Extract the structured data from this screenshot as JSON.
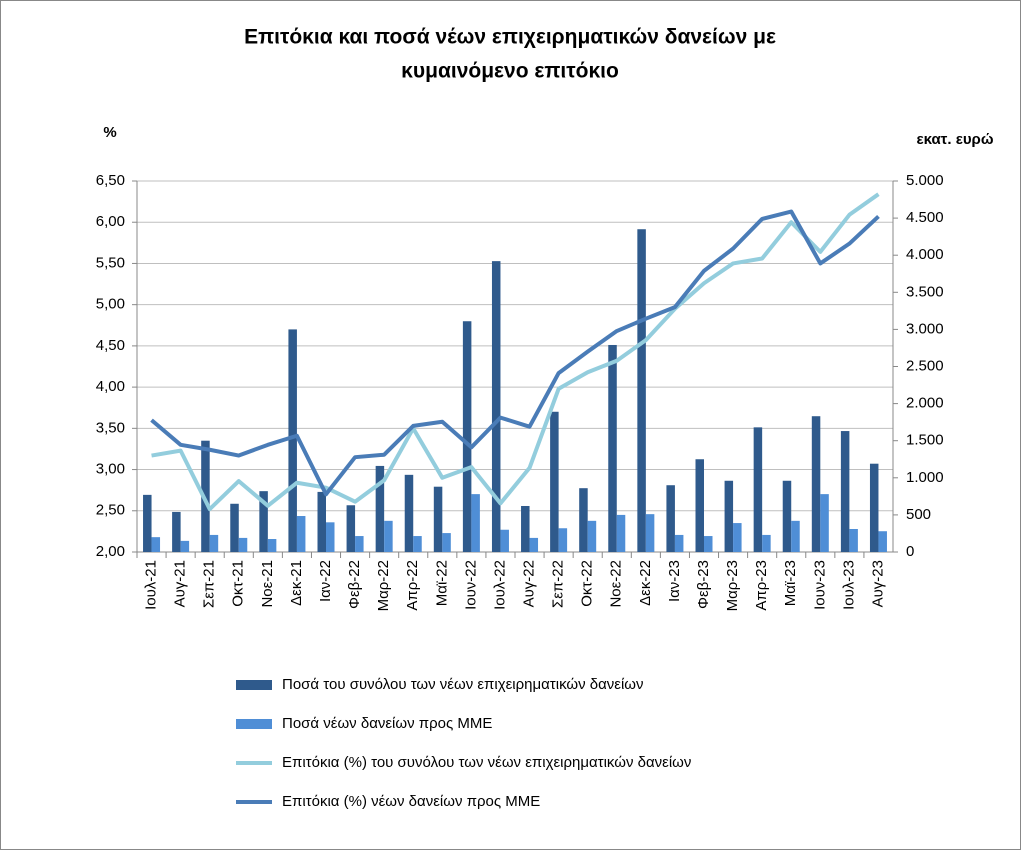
{
  "chart_data": {
    "type": "bar",
    "title": [
      "Επιτόκια και ποσά νέων επιχειρηματικών δανείων με",
      "κυμαινόμενο επιτόκιο"
    ],
    "y_label": "%",
    "y2_label": "εκατ. ευρώ",
    "categories": [
      "Ιουλ-21",
      "Αυγ-21",
      "Σεπ-21",
      "Οκτ-21",
      "Νοε-21",
      "Δεκ-21",
      "Ιαν-22",
      "Φεβ-22",
      "Μαρ-22",
      "Απρ-22",
      "Μαϊ-22",
      "Ιουν-22",
      "Ιουλ-22",
      "Αυγ-22",
      "Σεπ-22",
      "Οκτ-22",
      "Νοε-22",
      "Δεκ-22",
      "Ιαν-23",
      "Φεβ-23",
      "Μαρ-23",
      "Απρ-23",
      "Μαϊ-23",
      "Ιουν-23",
      "Ιουλ-23",
      "Αυγ-23"
    ],
    "series": [
      {
        "name": "Ποσά του συνόλου των νέων επιχειρηματικών δανείων",
        "type": "bar",
        "axis": "y2",
        "color": "#2f5a8c",
        "values": [
          770,
          540,
          1500,
          650,
          820,
          3000,
          810,
          630,
          1160,
          1040,
          880,
          3110,
          3920,
          620,
          1890,
          860,
          2790,
          4350,
          900,
          1250,
          960,
          1680,
          960,
          1830,
          1630,
          1190
        ]
      },
      {
        "name": "Ποσά νέων δανείων προς ΜΜΕ",
        "type": "bar",
        "axis": "y2",
        "color": "#4f8ed6",
        "values": [
          200,
          150,
          230,
          190,
          175,
          485,
          400,
          215,
          420,
          215,
          255,
          780,
          300,
          190,
          320,
          420,
          500,
          510,
          230,
          215,
          390,
          230,
          420,
          780,
          310,
          280
        ]
      },
      {
        "name": "Επιτόκια (%) του συνόλου των νέων επιχειρηματικών δανείων",
        "type": "line",
        "axis": "y",
        "color": "#93cddd",
        "values": [
          3.17,
          3.23,
          2.52,
          2.86,
          2.56,
          2.84,
          2.78,
          2.61,
          2.87,
          3.5,
          2.9,
          3.03,
          2.59,
          3.02,
          3.98,
          4.18,
          4.32,
          4.57,
          4.95,
          5.26,
          5.5,
          5.56,
          6.0,
          5.64,
          6.09,
          6.34
        ]
      },
      {
        "name": "Επιτόκια (%) νέων δανείων προς ΜΜΕ",
        "type": "line",
        "axis": "y",
        "color": "#4a7cb7",
        "values": [
          3.6,
          3.3,
          3.24,
          3.17,
          3.3,
          3.41,
          2.7,
          3.15,
          3.18,
          3.53,
          3.58,
          3.27,
          3.63,
          3.52,
          4.17,
          4.43,
          4.68,
          4.83,
          4.97,
          5.41,
          5.68,
          6.04,
          6.13,
          5.5,
          5.74,
          6.07
        ]
      }
    ],
    "ylim": [
      2.0,
      6.5
    ],
    "yticks": [
      {
        "value": 2.0,
        "label": "2,00"
      },
      {
        "value": 2.5,
        "label": "2,50"
      },
      {
        "value": 3.0,
        "label": "3,00"
      },
      {
        "value": 3.5,
        "label": "3,50"
      },
      {
        "value": 4.0,
        "label": "4,00"
      },
      {
        "value": 4.5,
        "label": "4,50"
      },
      {
        "value": 5.0,
        "label": "5,00"
      },
      {
        "value": 5.5,
        "label": "5,50"
      },
      {
        "value": 6.0,
        "label": "6,00"
      },
      {
        "value": 6.5,
        "label": "6,50"
      }
    ],
    "y2lim": [
      0,
      5000
    ],
    "y2ticks": [
      0,
      500,
      {
        "value": 1000,
        "label": "1.000"
      },
      {
        "value": 1500,
        "label": "1.500"
      },
      {
        "value": 2000,
        "label": "2.000"
      },
      {
        "value": 2500,
        "label": "2.500"
      },
      {
        "value": 3000,
        "label": "3.000"
      },
      {
        "value": 3500,
        "label": "3.500"
      },
      {
        "value": 4000,
        "label": "4.000"
      },
      {
        "value": 4500,
        "label": "4.500"
      },
      {
        "value": 5000,
        "label": "5.000"
      }
    ],
    "grid": true,
    "legend": "bottom"
  }
}
